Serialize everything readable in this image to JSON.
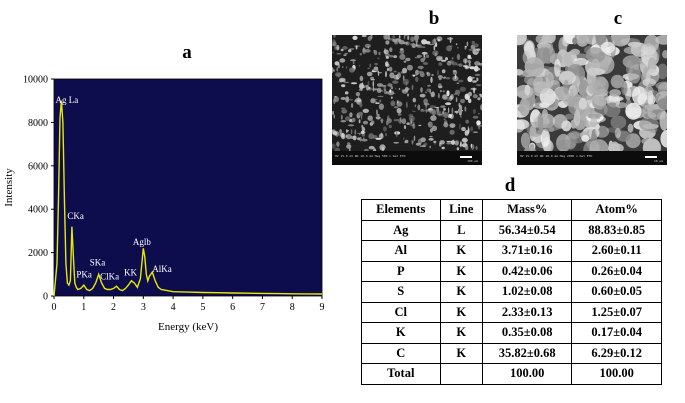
{
  "panels": {
    "a": "a",
    "b": "b",
    "c": "c",
    "d": "d"
  },
  "chart_data": {
    "type": "line",
    "xlabel": "Energy (keV)",
    "ylabel": "Intensity",
    "xlim": [
      0,
      9
    ],
    "ylim": [
      0,
      10000
    ],
    "xticks": [
      "0",
      "1",
      "2",
      "3",
      "4",
      "5",
      "6",
      "7",
      "8",
      "9"
    ],
    "yticks": [
      "0",
      "2000",
      "4000",
      "6000",
      "8000",
      "10000"
    ],
    "background": "#0d0d4d",
    "line_color": "#e8e800",
    "series": [
      {
        "x": [
          0.0,
          0.1,
          0.15,
          0.2,
          0.25,
          0.3,
          0.35,
          0.4,
          0.45,
          0.5,
          0.55,
          0.6,
          0.65,
          0.7,
          0.75,
          0.8,
          0.9,
          1.0,
          1.1,
          1.2,
          1.3,
          1.4,
          1.5,
          1.6,
          1.7,
          1.8,
          1.9,
          2.0,
          2.1,
          2.2,
          2.3,
          2.4,
          2.5,
          2.6,
          2.7,
          2.8,
          2.9,
          3.0,
          3.05,
          3.1,
          3.15,
          3.2,
          3.3,
          3.4,
          3.5,
          3.6,
          3.8,
          4.0,
          4.5,
          5.0,
          5.5,
          6.0,
          6.5,
          7.0,
          7.5,
          8.0,
          8.5,
          9.0
        ],
        "y": [
          0,
          1500,
          4500,
          8200,
          9000,
          8000,
          4500,
          1500,
          600,
          500,
          700,
          3200,
          1800,
          600,
          400,
          300,
          350,
          500,
          300,
          250,
          350,
          600,
          1000,
          600,
          350,
          300,
          300,
          350,
          450,
          300,
          250,
          350,
          500,
          700,
          600,
          400,
          800,
          2200,
          1800,
          1000,
          700,
          900,
          1100,
          700,
          400,
          300,
          250,
          200,
          180,
          160,
          150,
          140,
          130,
          120,
          110,
          100,
          95,
          90
        ]
      }
    ],
    "annotations": [
      {
        "text": "Ag La",
        "x": 0.05,
        "y": 8900
      },
      {
        "text": "CKa",
        "x": 0.45,
        "y": 3550
      },
      {
        "text": "SKa",
        "x": 1.2,
        "y": 1400
      },
      {
        "text": "PKa",
        "x": 0.75,
        "y": 850
      },
      {
        "text": "ClKa",
        "x": 1.55,
        "y": 750
      },
      {
        "text": "KK",
        "x": 2.35,
        "y": 950
      },
      {
        "text": "Aglb",
        "x": 2.65,
        "y": 2350
      },
      {
        "text": "AlKa",
        "x": 3.3,
        "y": 1100
      }
    ]
  },
  "sem_b": {
    "scale": "100 µm",
    "meta": "HV 15.0 kV  WD 10.0 mm  Mag 500 x  Det ETD"
  },
  "sem_c": {
    "scale": "10 µm",
    "meta": "HV 15.0 kV  WD 10.0 mm  Mag 2000 x  Det ETD"
  },
  "table": {
    "headers": [
      "Elements",
      "Line",
      "Mass%",
      "Atom%"
    ],
    "rows": [
      [
        "Ag",
        "L",
        "56.34±0.54",
        "88.83±0.85"
      ],
      [
        "Al",
        "K",
        "3.71±0.16",
        "2.60±0.11"
      ],
      [
        "P",
        "K",
        "0.42±0.06",
        "0.26±0.04"
      ],
      [
        "S",
        "K",
        "1.02±0.08",
        "0.60±0.05"
      ],
      [
        "Cl",
        "K",
        "2.33±0.13",
        "1.25±0.07"
      ],
      [
        "K",
        "K",
        "0.35±0.08",
        "0.17±0.04"
      ],
      [
        "C",
        "K",
        "35.82±0.68",
        "6.29±0.12"
      ],
      [
        "Total",
        "",
        "100.00",
        "100.00"
      ]
    ]
  }
}
